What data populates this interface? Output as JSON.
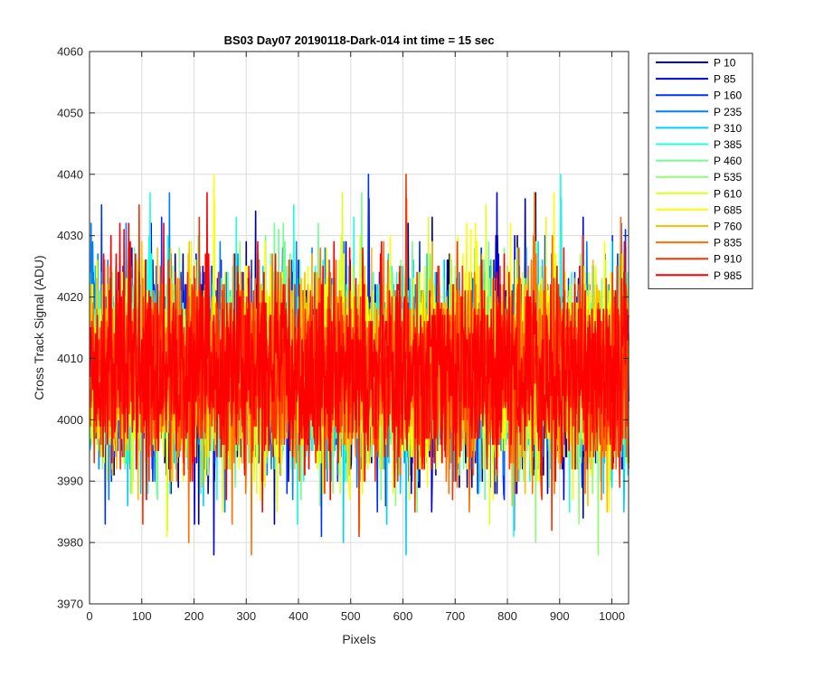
{
  "chart_data": {
    "type": "line",
    "title": "BS03 Day07 20190118-Dark-014 int time = 15 sec",
    "xlabel": "Pixels",
    "ylabel": "Cross Track Signal (ADU)",
    "xlim": [
      0,
      1032
    ],
    "ylim": [
      3970,
      4060
    ],
    "xticks": [
      0,
      100,
      200,
      300,
      400,
      500,
      600,
      700,
      800,
      900,
      1000
    ],
    "yticks": [
      3970,
      3980,
      3990,
      4000,
      4010,
      4020,
      4030,
      4040,
      4050,
      4060
    ],
    "grid": true,
    "legend_position": "outside-top-right",
    "n_points": 1032,
    "series": [
      {
        "name": "P 10",
        "color": "#00008f",
        "baseline": 4008
      },
      {
        "name": "P 85",
        "color": "#0000df",
        "baseline": 4008
      },
      {
        "name": "P 160",
        "color": "#0030ff",
        "baseline": 4008
      },
      {
        "name": "P 235",
        "color": "#0080ff",
        "baseline": 4008
      },
      {
        "name": "P 310",
        "color": "#00cfff",
        "baseline": 4008
      },
      {
        "name": "P 385",
        "color": "#20ffdf",
        "baseline": 4008
      },
      {
        "name": "P 460",
        "color": "#70ff8f",
        "baseline": 4008
      },
      {
        "name": "P 535",
        "color": "#8fff70",
        "baseline": 4008
      },
      {
        "name": "P 610",
        "color": "#dfff20",
        "baseline": 4008
      },
      {
        "name": "P 685",
        "color": "#ffff00",
        "baseline": 4008
      },
      {
        "name": "P 760",
        "color": "#ffbf00",
        "baseline": 4008
      },
      {
        "name": "P 835",
        "color": "#ff7000",
        "baseline": 4008
      },
      {
        "name": "P 910",
        "color": "#ff3000",
        "baseline": 4008
      },
      {
        "name": "P 985",
        "color": "#ff0000",
        "baseline": 4008
      }
    ]
  }
}
